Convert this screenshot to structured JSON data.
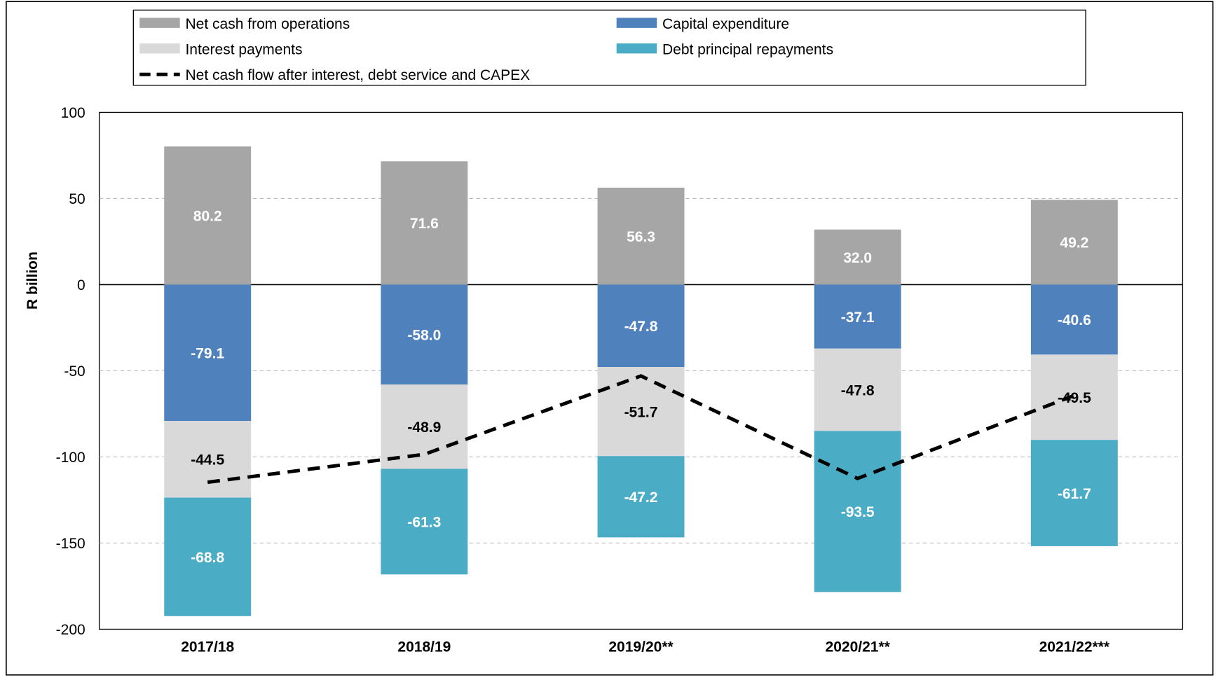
{
  "chart_data": {
    "type": "bar",
    "stacked": true,
    "y_label": "R billion",
    "categories": [
      "2017/18",
      "2018/19",
      "2019/20**",
      "2020/21**",
      "2021/22***"
    ],
    "series": [
      {
        "name": "Net cash from operations",
        "color": "#a6a6a6",
        "label_color": "#ffffff",
        "values": [
          80.2,
          71.6,
          56.3,
          32.0,
          49.2
        ],
        "value_labels": [
          "80.2",
          "71.6",
          "56.3",
          "32.0",
          "49.2"
        ]
      },
      {
        "name": "Capital expenditure",
        "color": "#4f81bd",
        "label_color": "#ffffff",
        "values": [
          -79.1,
          -58.0,
          -47.8,
          -37.1,
          -40.6
        ],
        "value_labels": [
          "-79.1",
          "-58.0",
          "-47.8",
          "-37.1",
          "-40.6"
        ]
      },
      {
        "name": "Interest payments",
        "color": "#d9d9d9",
        "label_color": "#000000",
        "values": [
          -44.5,
          -48.9,
          -51.7,
          -47.8,
          -49.5
        ],
        "value_labels": [
          "-44.5",
          "-48.9",
          "-51.7",
          "-47.8",
          "-49.5"
        ]
      },
      {
        "name": "Debt principal repayments",
        "color": "#4bacc6",
        "label_color": "#ffffff",
        "values": [
          -68.8,
          -61.3,
          -47.2,
          -93.5,
          -61.7
        ],
        "value_labels": [
          "-68.8",
          "-61.3",
          "-47.2",
          "-93.5",
          "-61.7"
        ]
      }
    ],
    "line_series": {
      "name": "Net cash flow after interest, debt service and CAPEX",
      "color": "#000000",
      "dashed": true,
      "values": [
        -114.7,
        -98.5,
        -53,
        -112.5,
        -64.3
      ]
    },
    "ylim": [
      -200,
      100
    ],
    "yticks": [
      -200,
      -150,
      -100,
      -50,
      0,
      50,
      100
    ],
    "grid": true
  }
}
